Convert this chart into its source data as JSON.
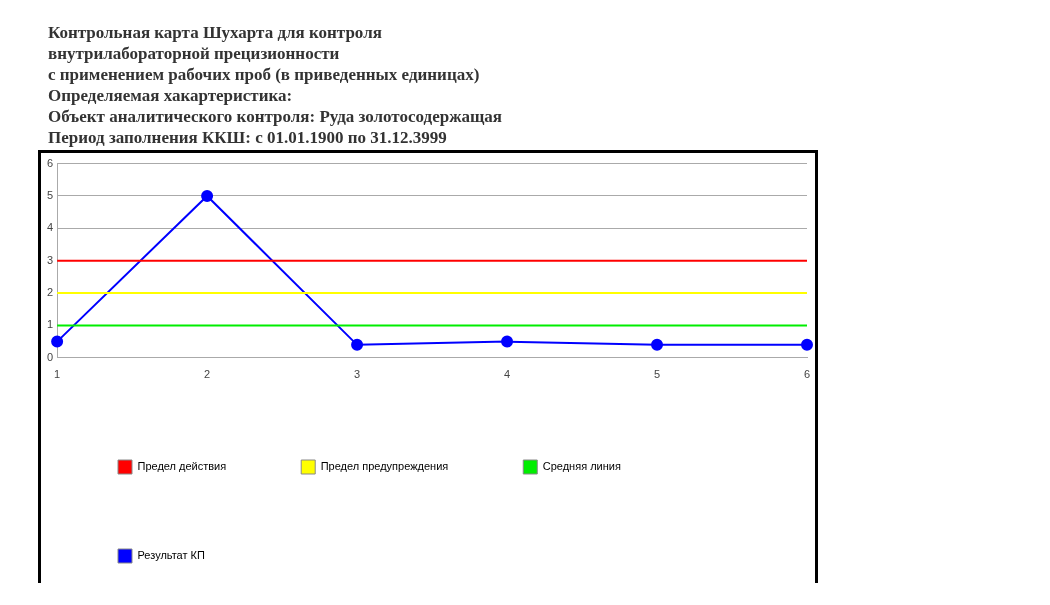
{
  "chart_data": {
    "type": "line",
    "title": "Контрольная карта Шухарта для контроля\nвнутрилабораторной прецизионности\nс применением рабочих проб (в приведенных единицах)\nОпределяемая хакартеристика:\nОбъект аналитического контроля: Руда золотосодержащая\nПериод заполнения ККШ: с 01.01.1900 по 31.12.3999",
    "categories": [
      "1",
      "2",
      "3",
      "4",
      "5",
      "6"
    ],
    "series": [
      {
        "name": "Предел действия",
        "color": "#ff0000",
        "marker": "none",
        "values": [
          3,
          3,
          3,
          3,
          3,
          3
        ]
      },
      {
        "name": "Предел предупреждения",
        "color": "#ffff00",
        "marker": "none",
        "values": [
          2,
          2,
          2,
          2,
          2,
          2
        ]
      },
      {
        "name": "Средняя линия",
        "color": "#00ee00",
        "marker": "none",
        "values": [
          1,
          1,
          1,
          1,
          1,
          1
        ]
      },
      {
        "name": "Результат КП",
        "color": "#0000ff",
        "marker": "circle",
        "values": [
          0.5,
          5,
          0.4,
          0.5,
          0.4,
          0.4
        ]
      }
    ],
    "ylim": [
      0,
      6
    ],
    "yticks": [
      0,
      1,
      2,
      3,
      4,
      5,
      6
    ],
    "grid": "y",
    "legend": "bottom"
  }
}
